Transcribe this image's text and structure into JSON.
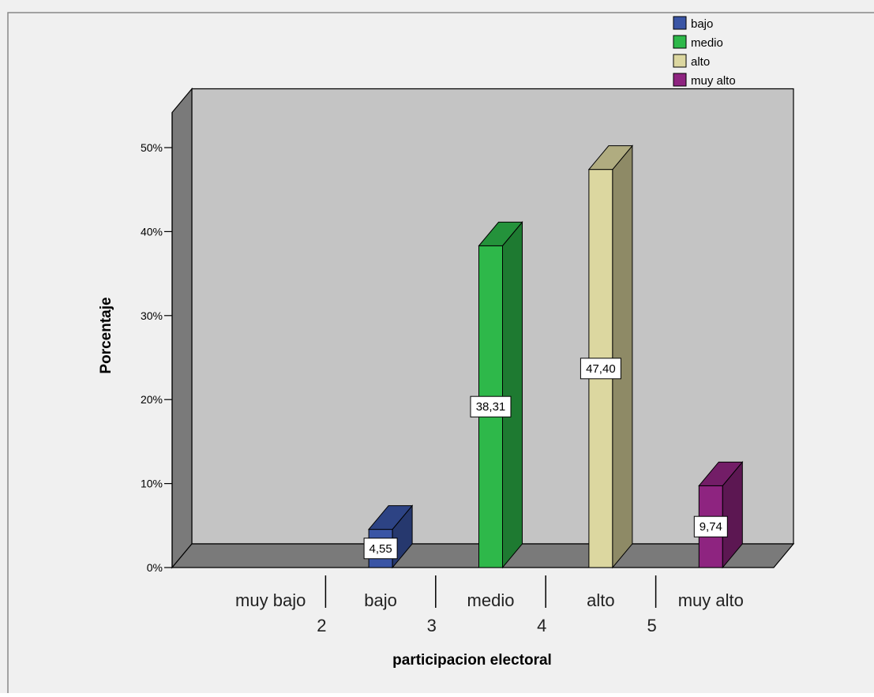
{
  "chart_data": {
    "type": "bar",
    "xlabel": "participacion electoral",
    "ylabel": "Porcentaje",
    "ylim": [
      0,
      57
    ],
    "yticks": [
      0,
      10,
      20,
      30,
      40,
      50
    ],
    "ytick_labels": [
      "0%",
      "10%",
      "20%",
      "30%",
      "40%",
      "50%"
    ],
    "categories": [
      "muy bajo",
      "bajo",
      "medio",
      "alto",
      "muy alto"
    ],
    "secondary_tick_labels": [
      "2",
      "3",
      "4",
      "5"
    ],
    "series": [
      {
        "name": "bajo",
        "category": "bajo",
        "value": 4.55,
        "label": "4,55",
        "color": "#3A55A5",
        "side_color": "#26386E",
        "top_color": "#2D4384"
      },
      {
        "name": "medio",
        "category": "medio",
        "value": 38.31,
        "label": "38,31",
        "color": "#2EB84A",
        "side_color": "#1E7A31",
        "top_color": "#24923B"
      },
      {
        "name": "alto",
        "category": "alto",
        "value": 47.4,
        "label": "47,40",
        "color": "#DCD7A0",
        "side_color": "#8E8A66",
        "top_color": "#B0AC80"
      },
      {
        "name": "muy alto",
        "category": "muy alto",
        "value": 9.74,
        "label": "9,74",
        "color": "#8E2480",
        "side_color": "#5C1752",
        "top_color": "#731D67"
      }
    ],
    "legend": {
      "position": "top-right",
      "items": [
        "bajo",
        "medio",
        "alto",
        "muy alto"
      ]
    },
    "grid": false,
    "colors": {
      "plot_back": "#C4C4C4",
      "plot_floor": "#7A7A7A",
      "plot_wall": "#7A7A7A",
      "background": "#F0F0F0"
    }
  }
}
